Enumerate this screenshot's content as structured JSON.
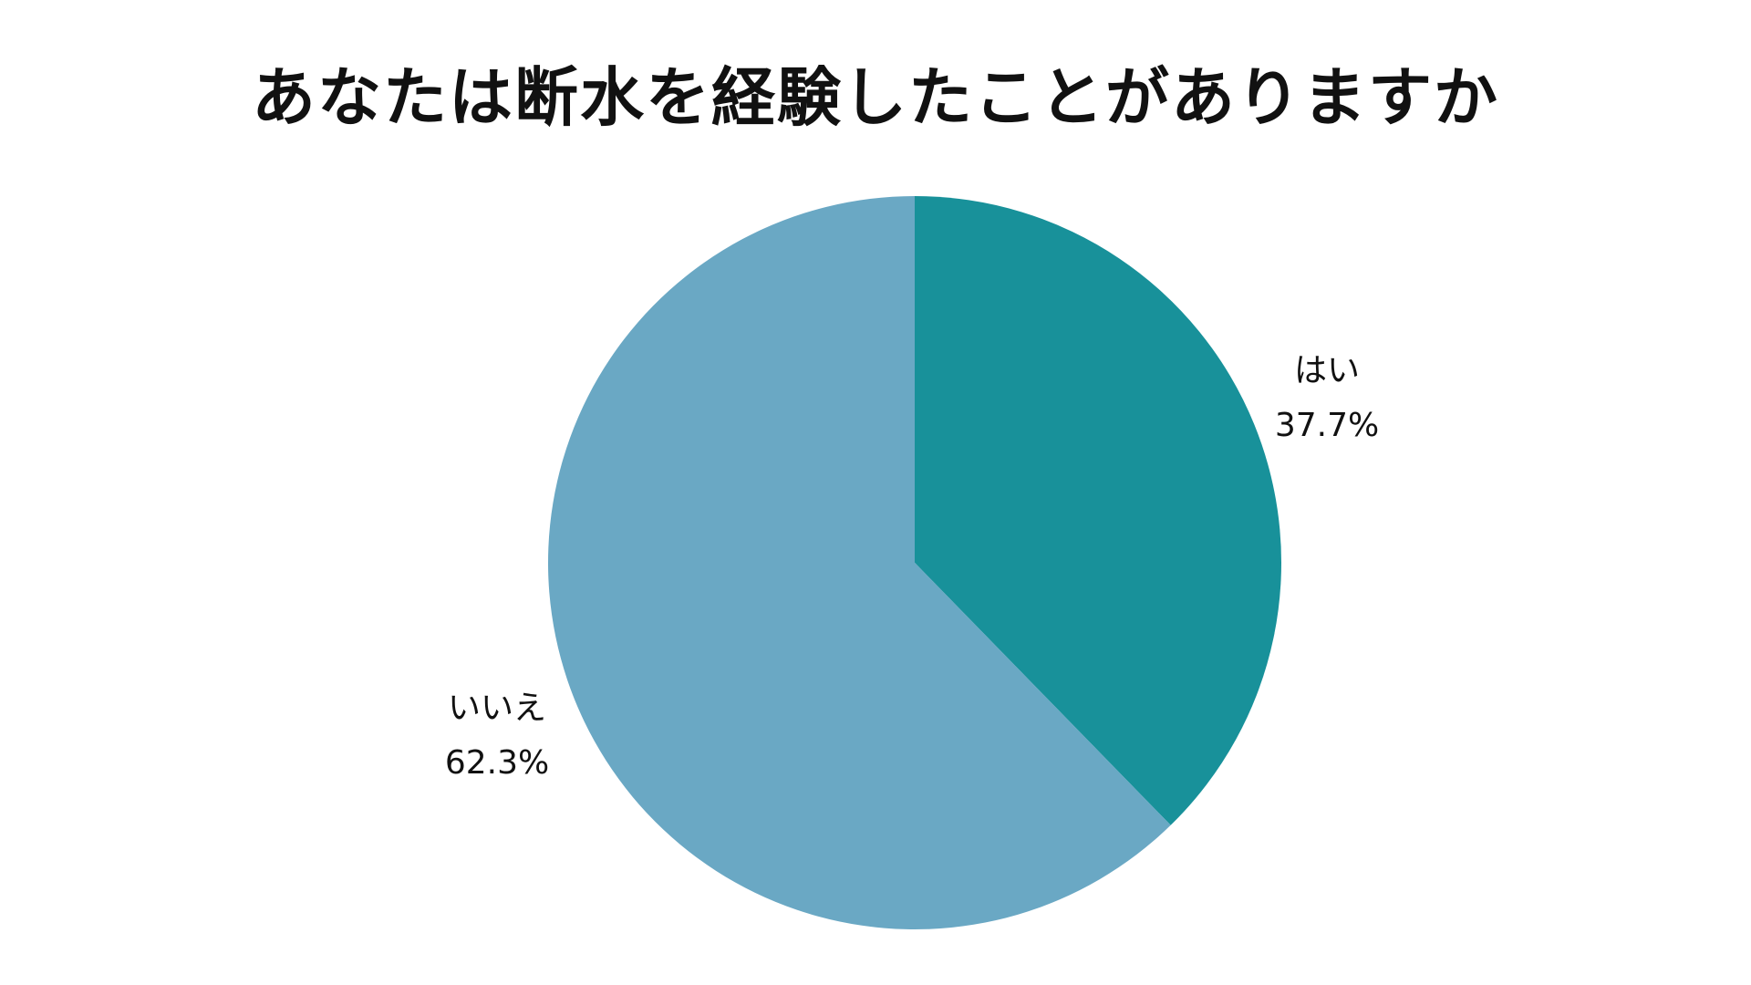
{
  "chart_data": {
    "type": "pie",
    "title": "あなたは断水を経験したことがありますか",
    "slices": [
      {
        "label": "はい",
        "value": 37.7,
        "value_label": "37.7%",
        "color": "#18919a"
      },
      {
        "label": "いいえ",
        "value": 62.3,
        "value_label": "62.3%",
        "color": "#6aa8c4"
      }
    ],
    "start_angle": "12 o'clock",
    "direction": "clockwise",
    "legend": "none",
    "data_labels": "outside"
  }
}
